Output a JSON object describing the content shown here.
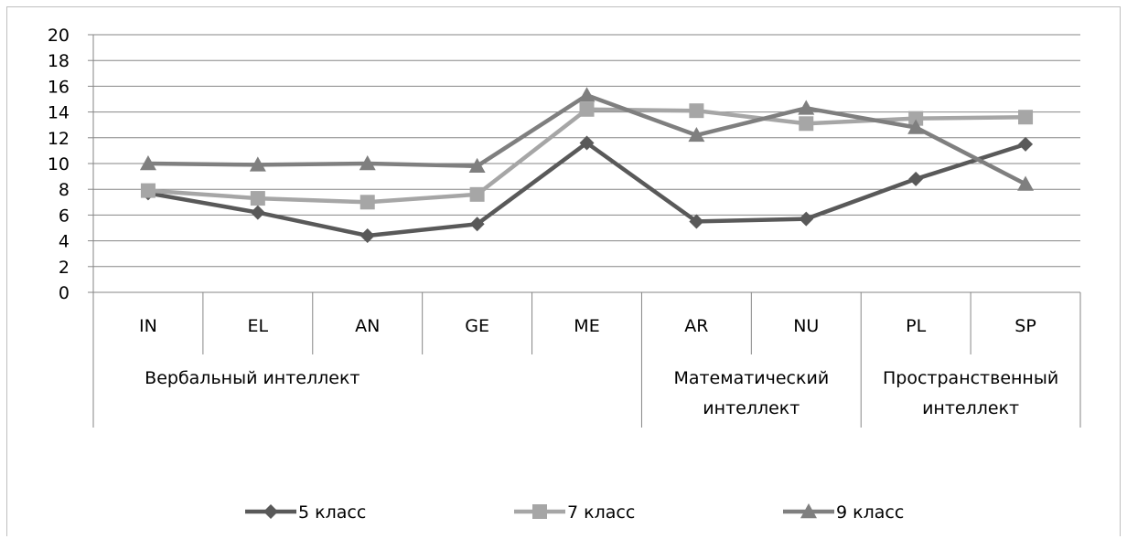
{
  "chart_data": {
    "type": "line",
    "ylim": [
      0,
      20
    ],
    "ytick_step": 2,
    "grid": true,
    "legend_position": "bottom",
    "categories": [
      "IN",
      "EL",
      "AN",
      "GE",
      "ME",
      "AR",
      "NU",
      "PL",
      "SP"
    ],
    "category_groups": [
      {
        "lines": [
          "Вербальный интеллект"
        ],
        "span": [
          0,
          4
        ]
      },
      {
        "lines": [
          "Математический",
          "интеллект"
        ],
        "span": [
          5,
          6
        ]
      },
      {
        "lines": [
          "Пространственный",
          "интеллект"
        ],
        "span": [
          7,
          8
        ]
      }
    ],
    "series": [
      {
        "name": "5 класс",
        "marker": "diamond",
        "color": "#595959",
        "values": [
          7.7,
          6.2,
          4.4,
          5.3,
          11.6,
          5.5,
          5.7,
          8.8,
          11.5
        ]
      },
      {
        "name": "7 класс",
        "marker": "square",
        "color": "#a6a6a6",
        "values": [
          7.9,
          7.3,
          7.0,
          7.6,
          14.2,
          14.1,
          13.1,
          13.5,
          13.6
        ]
      },
      {
        "name": "9 класс",
        "marker": "triangle",
        "color": "#7f7f7f",
        "values": [
          10.0,
          9.9,
          10.0,
          9.8,
          15.3,
          12.2,
          14.3,
          12.8,
          8.4
        ]
      }
    ]
  }
}
